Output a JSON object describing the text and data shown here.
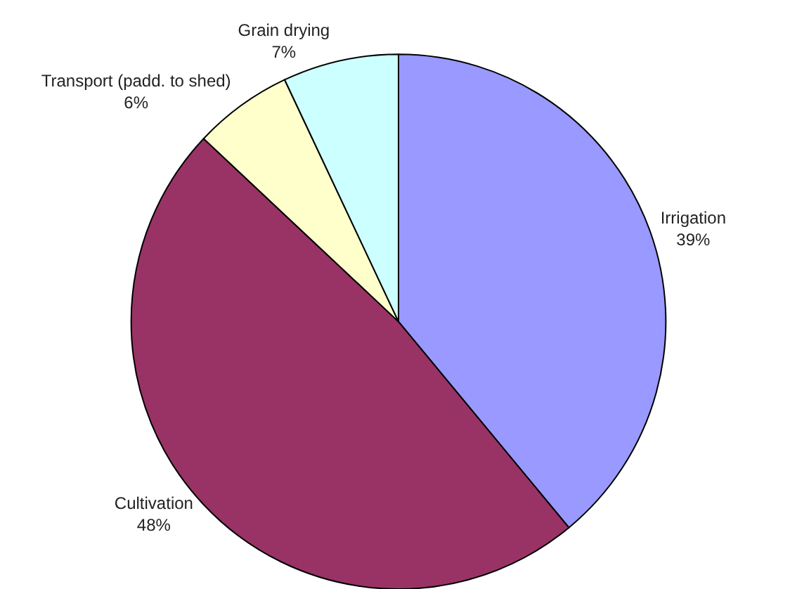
{
  "chart_data": {
    "type": "pie",
    "categories": [
      "Irrigation",
      "Cultivation",
      "Transport (padd. to shed)",
      "Grain drying"
    ],
    "values": [
      39,
      48,
      6,
      7
    ],
    "colors": [
      "#9999ff",
      "#993366",
      "#ffffcc",
      "#ccffff"
    ],
    "value_labels": [
      "39%",
      "48%",
      "6%",
      "7%"
    ],
    "legend": false
  }
}
